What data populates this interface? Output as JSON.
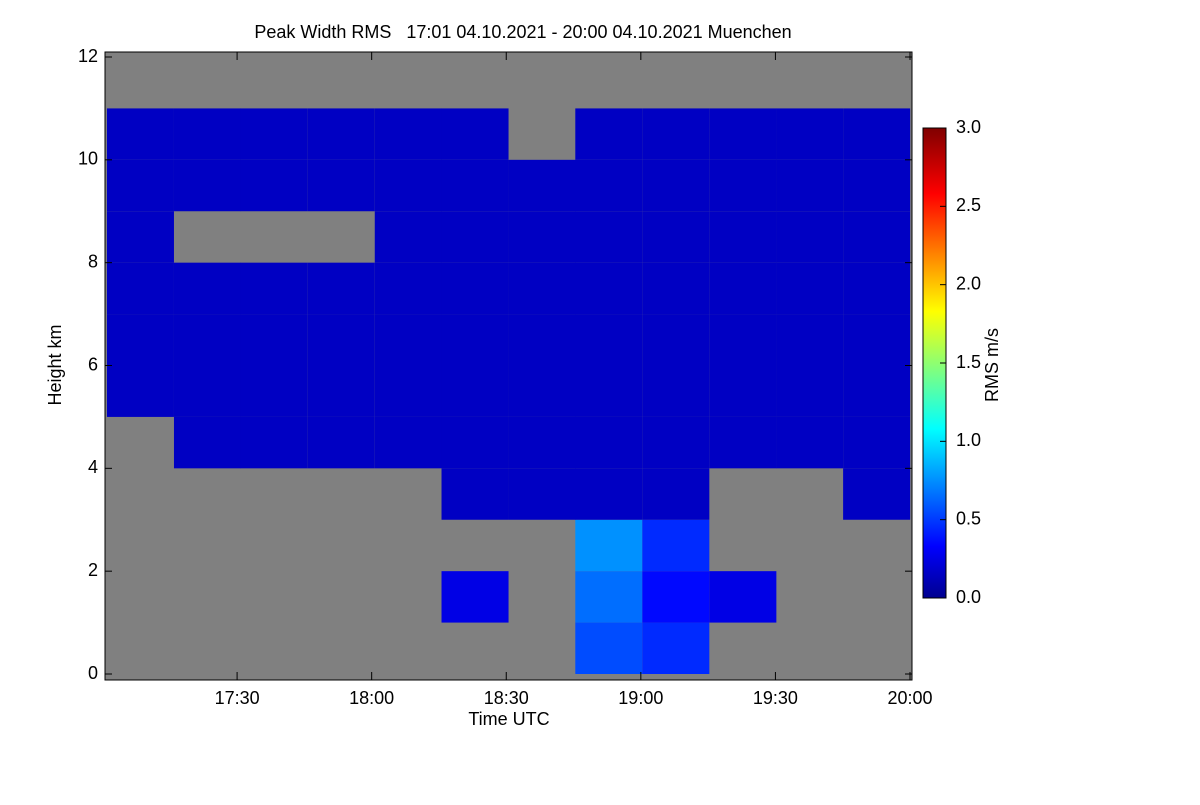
{
  "chart_data": {
    "type": "heatmap",
    "title": "Peak Width RMS   17:01 04.10.2021 - 20:00 04.10.2021 Muenchen",
    "x_label": "Time UTC",
    "y_label": "Height km",
    "colorbar_label": "RMS m/s",
    "colormap": "jet",
    "missing_color": "#808080",
    "xlim": [
      17.0167,
      20
    ],
    "xticks": [
      {
        "value": 17.5,
        "label": "17:30"
      },
      {
        "value": 18,
        "label": "18:00"
      },
      {
        "value": 18.5,
        "label": "18:30"
      },
      {
        "value": 19,
        "label": "19:00"
      },
      {
        "value": 19.5,
        "label": "19:30"
      },
      {
        "value": 20,
        "label": "20:00"
      }
    ],
    "ylim": [
      0,
      12
    ],
    "yticks": [
      0,
      2,
      4,
      6,
      8,
      10,
      12
    ],
    "zlim": [
      0,
      3
    ],
    "zticks": [
      {
        "value": 0,
        "label": "0.0"
      },
      {
        "value": 0.5,
        "label": "0.5"
      },
      {
        "value": 1,
        "label": "1.0"
      },
      {
        "value": 1.5,
        "label": "1.5"
      },
      {
        "value": 2,
        "label": "2.0"
      },
      {
        "value": 2.5,
        "label": "2.5"
      },
      {
        "value": 3,
        "label": "3.0"
      }
    ],
    "x": [
      17.141,
      17.39,
      17.638,
      17.887,
      18.136,
      18.384,
      18.633,
      18.881,
      19.13,
      19.379,
      19.627,
      19.876
    ],
    "y": [
      0.5,
      1.5,
      2.5,
      3.5,
      4.5,
      5.5,
      6.5,
      7.5,
      8.5,
      9.5,
      10.5,
      11.5
    ],
    "values": [
      [
        null,
        null,
        null,
        null,
        null,
        null,
        null,
        0.6,
        0.5,
        null,
        null,
        null
      ],
      [
        null,
        null,
        null,
        null,
        null,
        0.3,
        null,
        0.7,
        0.4,
        0.3,
        null,
        null
      ],
      [
        null,
        null,
        null,
        null,
        null,
        null,
        null,
        0.8,
        0.5,
        null,
        null,
        null
      ],
      [
        null,
        null,
        null,
        null,
        null,
        0.2,
        0.2,
        0.2,
        0.2,
        null,
        null,
        0.2
      ],
      [
        null,
        0.2,
        0.2,
        0.2,
        0.2,
        0.2,
        0.2,
        0.2,
        0.2,
        0.2,
        0.2,
        0.2
      ],
      [
        0.2,
        0.2,
        0.2,
        0.2,
        0.2,
        0.2,
        0.2,
        0.2,
        0.2,
        0.2,
        0.2,
        0.2
      ],
      [
        0.2,
        0.2,
        0.2,
        0.2,
        0.2,
        0.2,
        0.2,
        0.2,
        0.2,
        0.2,
        0.2,
        0.2
      ],
      [
        0.2,
        0.2,
        0.2,
        0.2,
        0.2,
        0.2,
        0.2,
        0.2,
        0.2,
        0.2,
        0.2,
        0.2
      ],
      [
        0.2,
        null,
        null,
        null,
        0.2,
        0.2,
        0.2,
        0.2,
        0.2,
        0.2,
        0.2,
        0.2
      ],
      [
        0.2,
        0.2,
        0.2,
        0.2,
        0.2,
        0.2,
        0.2,
        0.2,
        0.2,
        0.2,
        0.2,
        0.2
      ],
      [
        0.2,
        0.2,
        0.2,
        0.2,
        0.2,
        0.2,
        null,
        0.2,
        0.2,
        0.2,
        0.2,
        0.2
      ],
      [
        null,
        null,
        null,
        null,
        null,
        null,
        null,
        null,
        null,
        null,
        null,
        null
      ]
    ]
  }
}
